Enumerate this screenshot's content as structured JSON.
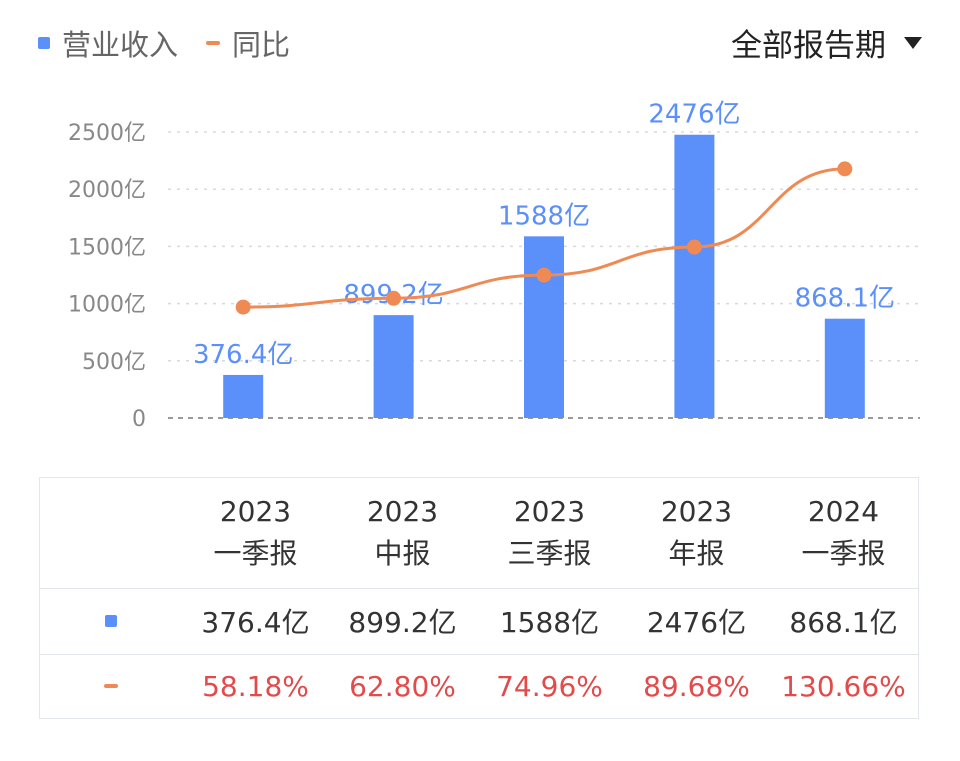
{
  "legend": {
    "bar_label": "营业收入",
    "line_label": "同比"
  },
  "period_selector": {
    "label": "全部报告期"
  },
  "colors": {
    "bar": "#5b8ff9",
    "line": "#f08a54",
    "pct_text": "#e24b4b",
    "axis_text": "#888888",
    "grid": "#d9d9d9"
  },
  "chart_data": {
    "type": "bar",
    "categories": [
      "2023一季报",
      "2023中报",
      "2023三季报",
      "2023年报",
      "2024一季报"
    ],
    "series": [
      {
        "name": "营业收入",
        "type": "bar",
        "values": [
          376.4,
          899.2,
          1588,
          2476,
          868.1
        ],
        "labels": [
          "376.4亿",
          "899.2亿",
          "1588亿",
          "2476亿",
          "868.1亿"
        ]
      },
      {
        "name": "同比",
        "type": "line",
        "values": [
          58.18,
          62.8,
          74.96,
          89.68,
          130.66
        ]
      }
    ],
    "yticks": [
      "0",
      "500亿",
      "1000亿",
      "1500亿",
      "2000亿",
      "2500亿"
    ],
    "ylim": [
      0,
      2500
    ],
    "line_ylim": [
      0,
      150
    ],
    "grid": true
  },
  "table": {
    "headers": [
      {
        "year": "2023",
        "period": "一季报"
      },
      {
        "year": "2023",
        "period": "中报"
      },
      {
        "year": "2023",
        "period": "三季报"
      },
      {
        "year": "2023",
        "period": "年报"
      },
      {
        "year": "2024",
        "period": "一季报"
      }
    ],
    "revenue": [
      "376.4亿",
      "899.2亿",
      "1588亿",
      "2476亿",
      "868.1亿"
    ],
    "yoy": [
      "58.18%",
      "62.80%",
      "74.96%",
      "89.68%",
      "130.66%"
    ]
  }
}
